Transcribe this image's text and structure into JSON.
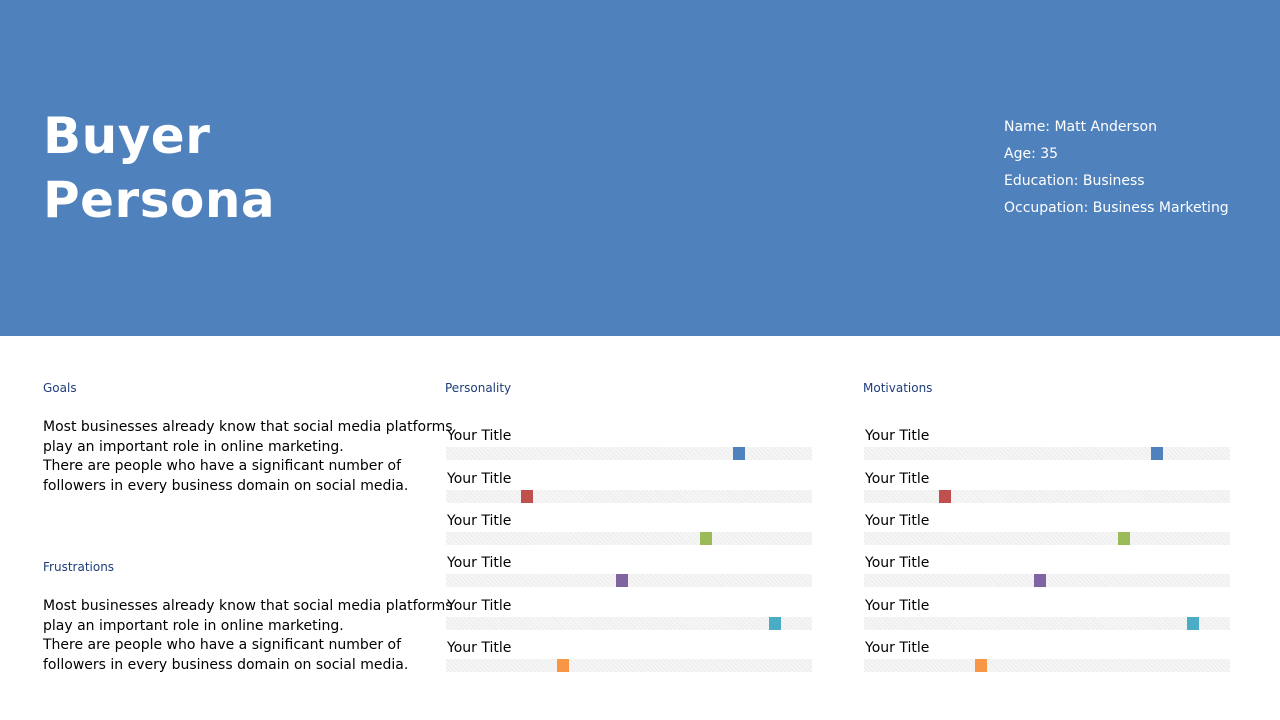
{
  "header": {
    "title_line1": "Buyer",
    "title_line2": "Persona",
    "bg_color": "#4f81bd"
  },
  "profile": {
    "name": "Name: Matt Anderson",
    "age": "Age: 35",
    "education": "Education: Business",
    "occupation": "Occupation: Business Marketing"
  },
  "goals": {
    "label": "Goals",
    "line1": "Most businesses already know that social media platforms play an important role in online marketing.",
    "line2": "There are people who have a significant number of followers in every business domain on social media."
  },
  "frustrations": {
    "label": "Frustrations",
    "line1": "Most businesses already know that social media platforms play an important role in online marketing.",
    "line2": "There are people who have a significant number of followers in every business domain on social media."
  },
  "personality": {
    "label": "Personality",
    "items": [
      {
        "title": "Your Title",
        "value": 0.8,
        "color": "#4f81bd"
      },
      {
        "title": "Your Title",
        "value": 0.22,
        "color": "#c0504d"
      },
      {
        "title": "Your Title",
        "value": 0.71,
        "color": "#9bbb59"
      },
      {
        "title": "Your Title",
        "value": 0.48,
        "color": "#8064a2"
      },
      {
        "title": "Your Title",
        "value": 0.9,
        "color": "#4bacc6"
      },
      {
        "title": "Your Title",
        "value": 0.32,
        "color": "#f79646"
      }
    ]
  },
  "motivations": {
    "label": "Motivations",
    "items": [
      {
        "title": "Your Title",
        "value": 0.8,
        "color": "#4f81bd"
      },
      {
        "title": "Your Title",
        "value": 0.22,
        "color": "#c0504d"
      },
      {
        "title": "Your Title",
        "value": 0.71,
        "color": "#9bbb59"
      },
      {
        "title": "Your Title",
        "value": 0.48,
        "color": "#8064a2"
      },
      {
        "title": "Your Title",
        "value": 0.9,
        "color": "#4bacc6"
      },
      {
        "title": "Your Title",
        "value": 0.32,
        "color": "#f79646"
      }
    ]
  }
}
